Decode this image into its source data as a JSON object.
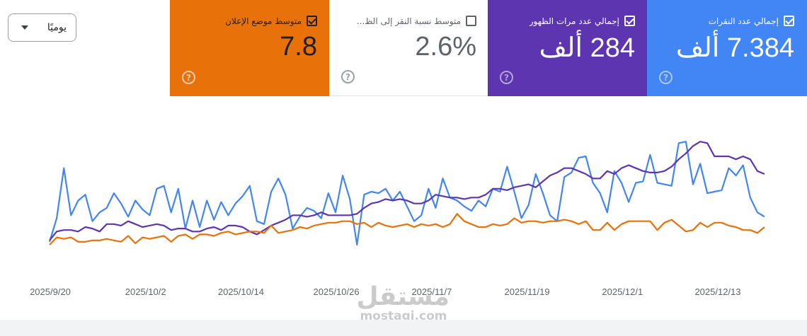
{
  "range_select": {
    "label": "يوميًا"
  },
  "cards": {
    "clicks": {
      "title": "إجمالي عدد النقرات",
      "value": "7.384 ألف",
      "checked": true,
      "color": "#4285f4"
    },
    "impressions": {
      "title": "إجمالي عدد مرات الظهور",
      "value": "284 ألف",
      "checked": true,
      "color": "#5e35b1"
    },
    "ctr": {
      "title": "متوسط نسبة النقر إلى الظ...",
      "value": "2.6%",
      "checked": false,
      "color": "#ffffff"
    },
    "position": {
      "title": "متوسط موضع الإعلان",
      "value": "7.8",
      "checked": true,
      "color": "#e8710a"
    }
  },
  "help_glyph": "?",
  "watermark": {
    "ar": "مستقل",
    "en": "mostaqi.com"
  },
  "chart_data": {
    "type": "line",
    "x_tick_labels": [
      "2025/9/20",
      "2025/10/2",
      "2025/10/14",
      "2025/10/26",
      "2025/11/7",
      "2025/11/19",
      "2025/12/1",
      "2025/12/13"
    ],
    "grid": false,
    "legend": "none",
    "series": [
      {
        "name": "إجمالي عدد النقرات",
        "color": "#4285f4",
        "values": [
          0.02,
          0.18,
          0.52,
          0.2,
          0.3,
          0.34,
          0.16,
          0.22,
          0.25,
          0.35,
          0.28,
          0.19,
          0.3,
          0.24,
          0.2,
          0.38,
          0.4,
          0.22,
          0.38,
          0.11,
          0.3,
          0.12,
          0.3,
          0.17,
          0.29,
          0.2,
          0.28,
          0.33,
          0.4,
          0.16,
          0.14,
          0.36,
          0.45,
          0.34,
          0.11,
          0.19,
          0.25,
          0.23,
          0.18,
          0.35,
          0.22,
          0.47,
          0.31,
          0,
          0.34,
          0.36,
          0.35,
          0.38,
          0.3,
          0.36,
          0.26,
          0.16,
          0.2,
          0.38,
          0.25,
          0.45,
          0.32,
          0.3,
          0.26,
          0.23,
          0.3,
          0.26,
          0.38,
          0.36,
          0.53,
          0.36,
          0.18,
          0.27,
          0.48,
          0.35,
          0.2,
          0.16,
          0.46,
          0.49,
          0.59,
          0.6,
          0.42,
          0.35,
          0.22,
          0.5,
          0.42,
          0.29,
          0.42,
          0.43,
          0.61,
          0.42,
          0.41,
          0.4,
          0.69,
          0.7,
          0.41,
          0.55,
          0.35,
          0.36,
          0.37,
          0.52,
          0.47,
          0.54,
          0.32,
          0.22,
          0.19
        ]
      },
      {
        "name": "إجمالي عدد مرات الظهور",
        "color": "#5e35b1",
        "values": [
          0.03,
          0.09,
          0.1,
          0.1,
          0.09,
          0.12,
          0.11,
          0.09,
          0.14,
          0.14,
          0.13,
          0.16,
          0.14,
          0.12,
          0.13,
          0.14,
          0.13,
          0.1,
          0.11,
          0.11,
          0.09,
          0.09,
          0.11,
          0.12,
          0.1,
          0.13,
          0.13,
          0.12,
          0.09,
          0.07,
          0.1,
          0.13,
          0.15,
          0.17,
          0.2,
          0.2,
          0.19,
          0.2,
          0.22,
          0.2,
          0.2,
          0.2,
          0.2,
          0.21,
          0.25,
          0.28,
          0.29,
          0.31,
          0.3,
          0.31,
          0.3,
          0.28,
          0.28,
          0.3,
          0.34,
          0.33,
          0.32,
          0.32,
          0.31,
          0.32,
          0.32,
          0.34,
          0.38,
          0.38,
          0.37,
          0.39,
          0.4,
          0.41,
          0.39,
          0.43,
          0.47,
          0.49,
          0.52,
          0.52,
          0.5,
          0.48,
          0.45,
          0.45,
          0.5,
          0.48,
          0.52,
          0.54,
          0.52,
          0.5,
          0.49,
          0.49,
          0.5,
          0.53,
          0.58,
          0.62,
          0.67,
          0.7,
          0.69,
          0.6,
          0.6,
          0.6,
          0.58,
          0.6,
          0.58,
          0.5,
          0.48
        ]
      },
      {
        "name": "متوسط موضع الإعلان",
        "color": "#e8710a",
        "values": [
          0,
          0.05,
          0.04,
          0.05,
          0.02,
          0.02,
          0.03,
          0.03,
          0.04,
          0.03,
          0.02,
          0.06,
          0.01,
          0.05,
          0.04,
          0.05,
          0.06,
          0.02,
          0.06,
          0.07,
          0.04,
          0.07,
          0.07,
          0.06,
          0.08,
          0.09,
          0.07,
          0.08,
          0.09,
          0.09,
          0.08,
          0.13,
          0.08,
          0.09,
          0.1,
          0.12,
          0.11,
          0.13,
          0.14,
          0.15,
          0.15,
          0.16,
          0.16,
          0.14,
          0.15,
          0.12,
          0.15,
          0.13,
          0.12,
          0.13,
          0.14,
          0.12,
          0.14,
          0.13,
          0.14,
          0.12,
          0.14,
          0.21,
          0.16,
          0.14,
          0.12,
          0.12,
          0.14,
          0.13,
          0.14,
          0.18,
          0.15,
          0.16,
          0.16,
          0.15,
          0.16,
          0.16,
          0.17,
          0.16,
          0.14,
          0.16,
          0.1,
          0.1,
          0.15,
          0.1,
          0.14,
          0.16,
          0.16,
          0.16,
          0.16,
          0.1,
          0.15,
          0.17,
          0.13,
          0.09,
          0.1,
          0.15,
          0.12,
          0.15,
          0.15,
          0.13,
          0.12,
          0.1,
          0.1,
          0.08,
          0.12
        ]
      }
    ]
  }
}
